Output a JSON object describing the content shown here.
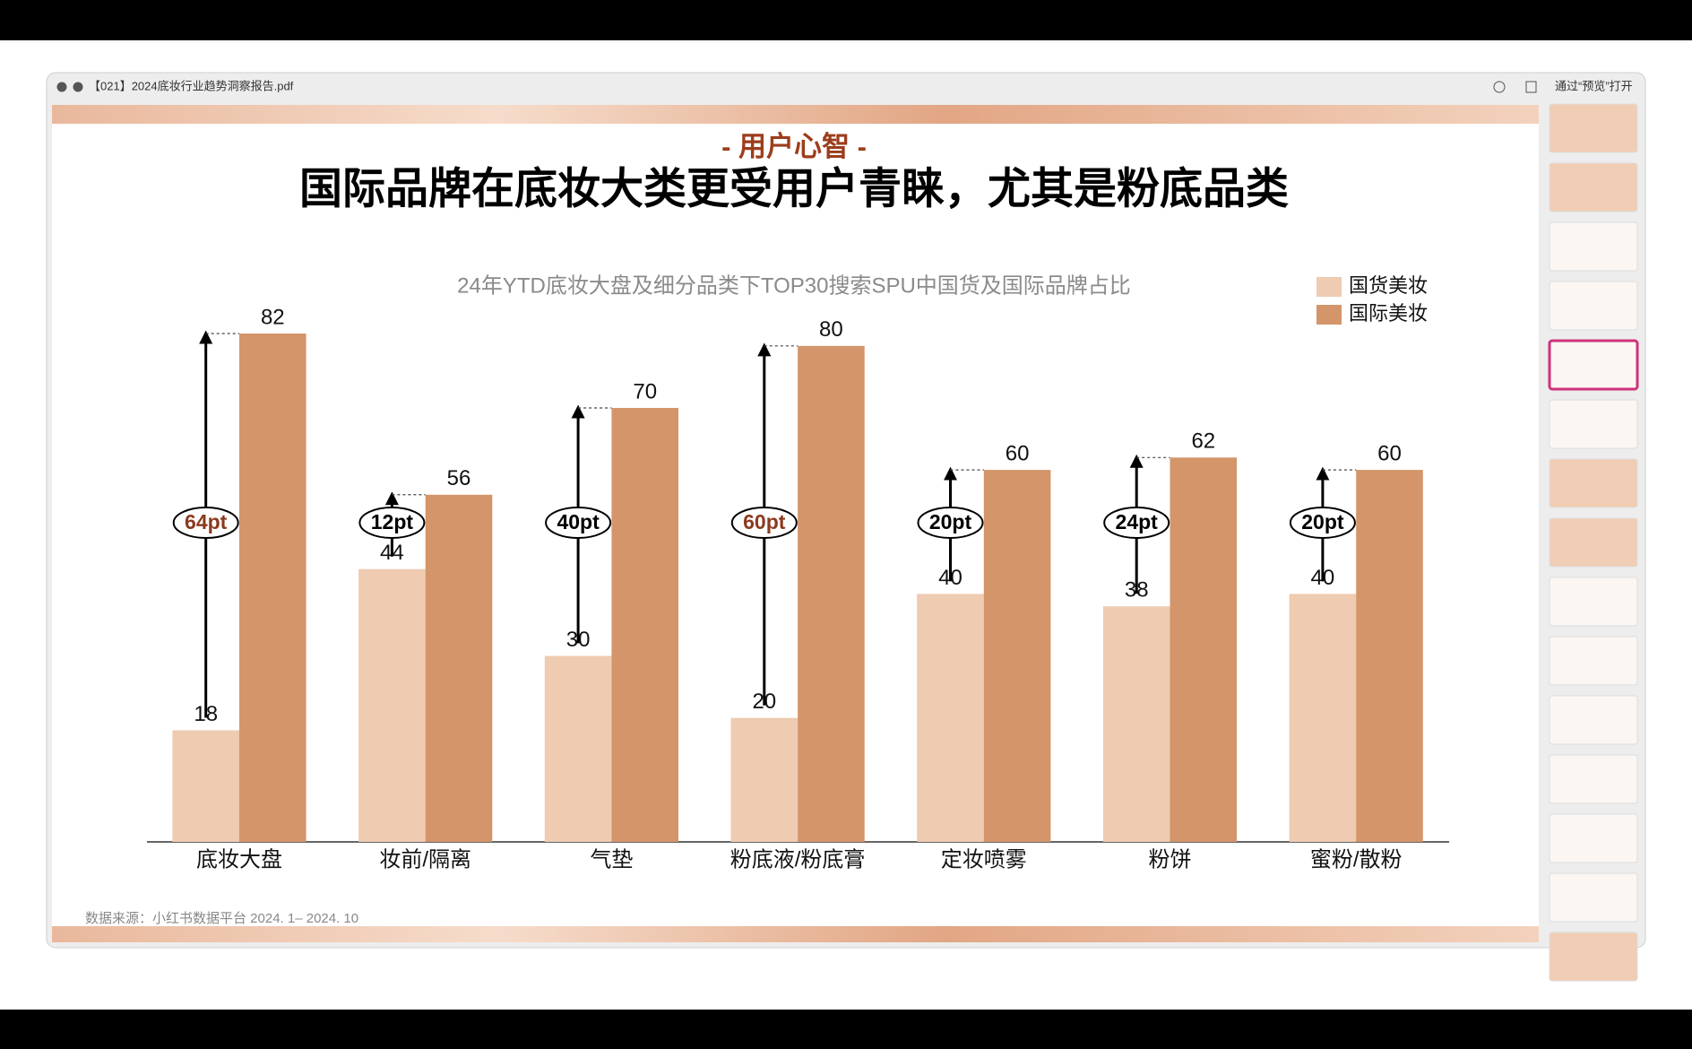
{
  "window": {
    "title": "【021】2024底妆行业趋势洞察报告.pdf",
    "open_with": "通过“预览”打开"
  },
  "slide": {
    "section": "- 用户心智 -",
    "headline": "国际品牌在底妆大类更受用户青睐，尤其是粉底品类",
    "source": "数据来源：小红书数据平台 2024. 1– 2024. 10"
  },
  "chart_data": {
    "type": "bar",
    "title": "24年YTD底妆大盘及细分品类下TOP30搜索SPU中国货及国际品牌占比",
    "categories": [
      "底妆大盘",
      "妆前/隔离",
      "气垫",
      "粉底液/粉底膏",
      "定妆喷雾",
      "粉饼",
      "蜜粉/散粉"
    ],
    "series": [
      {
        "name": "国货美妆",
        "color": "#eecbb1",
        "values": [
          18,
          44,
          30,
          20,
          40,
          38,
          40
        ]
      },
      {
        "name": "国际美妆",
        "color": "#d4956a",
        "values": [
          82,
          56,
          70,
          80,
          60,
          62,
          60
        ]
      }
    ],
    "annotations": [
      {
        "text": "64pt",
        "color": "#8b3a1e"
      },
      {
        "text": "12pt",
        "color": "#000000"
      },
      {
        "text": "40pt",
        "color": "#000000"
      },
      {
        "text": "60pt",
        "color": "#8b3a1e"
      },
      {
        "text": "20pt",
        "color": "#000000"
      },
      {
        "text": "24pt",
        "color": "#000000"
      },
      {
        "text": "20pt",
        "color": "#000000"
      }
    ],
    "legend": "upper right"
  }
}
